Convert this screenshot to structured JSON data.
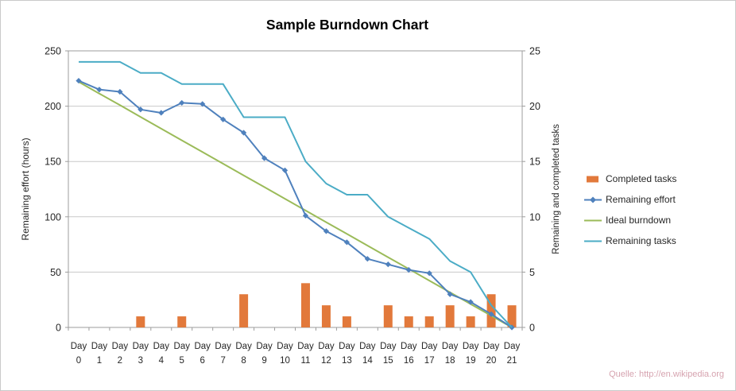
{
  "watermark": {
    "text": "Quelle: http://en.wikipedia.org"
  },
  "colors": {
    "gridline": "#c9c9c9",
    "axis": "#9c9c9c",
    "text": "#262626",
    "watermark": "#d6a3af",
    "completed_tasks": "#E2793B",
    "remaining_effort": "#4F81BD",
    "ideal_burndown": "#9BBB59",
    "remaining_tasks": "#4BACC6"
  },
  "chart_data": {
    "type": "line",
    "title": "Sample Burndown Chart",
    "categories": [
      "Day 0",
      "Day 1",
      "Day 2",
      "Day 3",
      "Day 4",
      "Day 5",
      "Day 6",
      "Day 7",
      "Day 8",
      "Day 9",
      "Day 10",
      "Day 11",
      "Day 12",
      "Day 13",
      "Day 14",
      "Day 15",
      "Day 16",
      "Day 17",
      "Day 18",
      "Day 19",
      "Day 20",
      "Day 21"
    ],
    "grid": true,
    "legend_position": "right",
    "axis_left": {
      "title": "Remaining effort (hours)",
      "min": 0,
      "max": 250,
      "ticks": [
        0,
        50,
        100,
        150,
        200,
        250
      ]
    },
    "axis_right": {
      "title": "Remaining and  completed tasks",
      "min": 0,
      "max": 25,
      "ticks": [
        0,
        5,
        10,
        15,
        20,
        25
      ]
    },
    "series": [
      {
        "name": "Completed tasks",
        "kind": "bar",
        "axis": "right",
        "color": "#E2793B",
        "values": [
          0,
          0,
          0,
          1,
          0,
          1,
          0,
          0,
          3,
          0,
          0,
          4,
          2,
          1,
          0,
          2,
          1,
          1,
          2,
          1,
          3,
          2
        ]
      },
      {
        "name": "Remaining effort",
        "kind": "line",
        "marker": "diamond",
        "axis": "left",
        "color": "#4F81BD",
        "values": [
          223,
          215,
          213,
          197,
          194,
          203,
          202,
          188,
          176,
          153,
          142,
          101,
          87,
          77,
          62,
          57,
          52,
          49,
          30,
          23,
          12,
          0
        ]
      },
      {
        "name": "Ideal burndown",
        "kind": "line",
        "axis": "left",
        "color": "#9BBB59",
        "values": [
          222,
          211.4,
          200.9,
          190.3,
          179.7,
          169.1,
          158.6,
          148,
          137.4,
          126.9,
          116.3,
          105.7,
          95.1,
          84.6,
          74,
          63.4,
          52.9,
          42.3,
          31.7,
          21.1,
          10.6,
          0
        ]
      },
      {
        "name": "Remaining tasks",
        "kind": "line",
        "axis": "right",
        "color": "#4BACC6",
        "values": [
          24,
          24,
          24,
          23,
          23,
          22,
          22,
          22,
          19,
          19,
          19,
          15,
          13,
          12,
          12,
          10,
          9,
          8,
          6,
          5,
          2,
          0
        ]
      }
    ]
  }
}
